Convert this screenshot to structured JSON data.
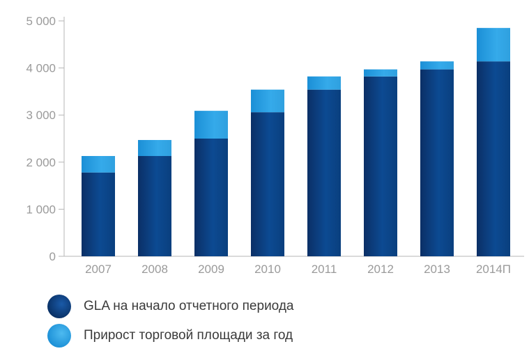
{
  "chart_data": {
    "type": "bar",
    "stacked": true,
    "categories": [
      "2007",
      "2008",
      "2009",
      "2010",
      "2011",
      "2012",
      "2013",
      "2014П"
    ],
    "series": [
      {
        "name": "GLA на начало отчетного периода",
        "values": [
          1780,
          2130,
          2500,
          3060,
          3540,
          3820,
          3970,
          4140
        ],
        "color": "#0a3f7e"
      },
      {
        "name": "Прирост торговой площади за год",
        "values": [
          350,
          340,
          590,
          480,
          280,
          150,
          170,
          710
        ],
        "color": "#2fa4e3"
      }
    ],
    "ylim": [
      0,
      5000
    ],
    "yticks": [
      0,
      1000,
      2000,
      3000,
      4000,
      5000
    ],
    "ytick_labels": [
      "0",
      "1 000",
      "2 000",
      "3 000",
      "4 000",
      "5 000"
    ],
    "grid": false,
    "legend_position": "bottom-left"
  },
  "legend": {
    "items": [
      {
        "label": "GLA на начало отчетного периода",
        "icon": "dark-blue-circle-icon",
        "color": "#0a3f7e"
      },
      {
        "label": "Прирост торговой площади за год",
        "icon": "light-blue-circle-icon",
        "color": "#2fa4e3"
      }
    ]
  }
}
